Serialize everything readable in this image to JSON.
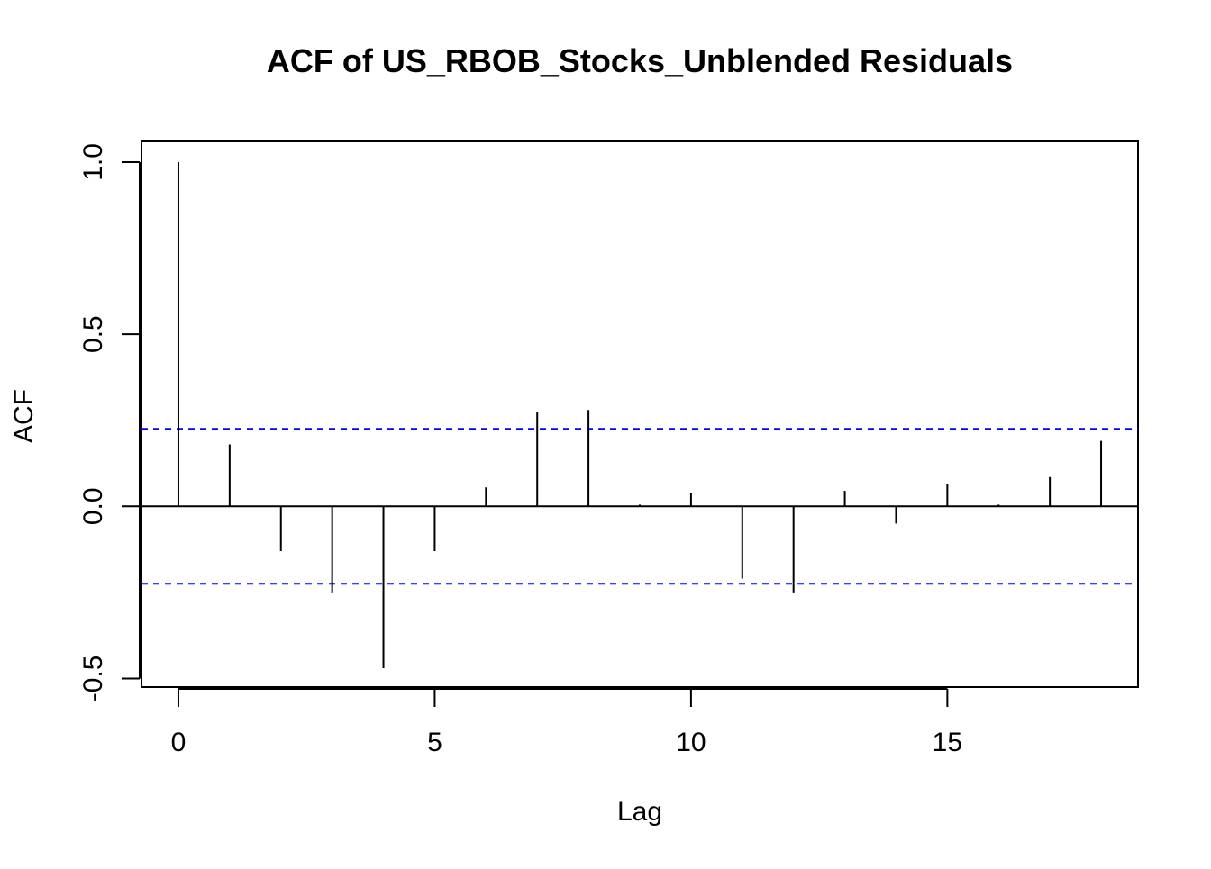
{
  "chart_data": {
    "type": "bar",
    "title": "ACF of US_RBOB_Stocks_Unblended Residuals",
    "xlabel": "Lag",
    "ylabel": "ACF",
    "x": [
      0,
      1,
      2,
      3,
      4,
      5,
      6,
      7,
      8,
      9,
      10,
      11,
      12,
      13,
      14,
      15,
      16,
      17,
      18
    ],
    "values": [
      1.0,
      0.18,
      -0.13,
      -0.25,
      -0.47,
      -0.13,
      0.055,
      0.275,
      0.28,
      0.005,
      0.04,
      -0.21,
      -0.25,
      0.045,
      -0.05,
      0.065,
      0.005,
      0.085,
      0.19
    ],
    "confidence_bound": 0.225,
    "xlim": [
      -0.72,
      18.72
    ],
    "ylim": [
      -0.525,
      1.06
    ],
    "x_ticks": [
      "0",
      "5",
      "10",
      "15"
    ],
    "x_tick_values": [
      0,
      5,
      10,
      15
    ],
    "y_ticks": [
      "-0.5",
      "0.0",
      "0.5",
      "1.0"
    ],
    "y_tick_values": [
      -0.5,
      0.0,
      0.5,
      1.0
    ],
    "grid": false,
    "colors": {
      "bars": "#000000",
      "zero_line": "#000000",
      "confidence_lines": "#0000ff",
      "frame": "#000000"
    }
  }
}
